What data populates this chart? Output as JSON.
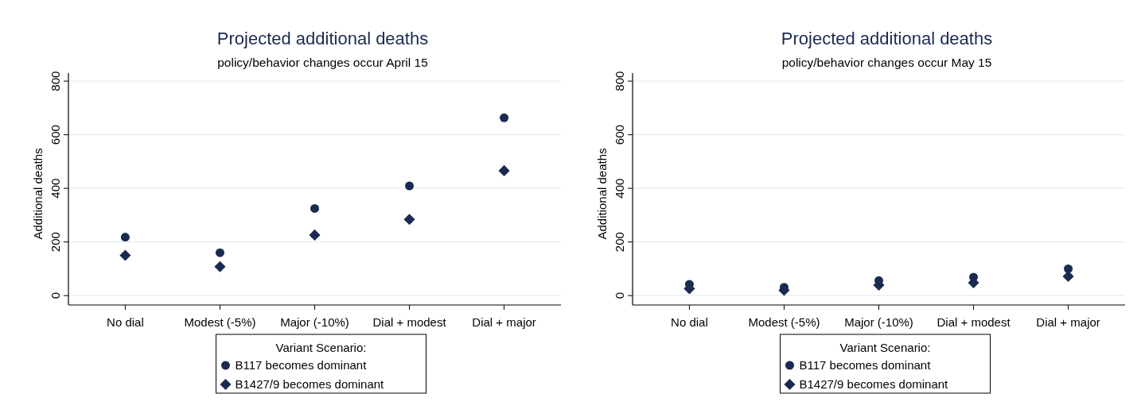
{
  "chart_data": [
    {
      "type": "scatter",
      "title": "Projected additional deaths",
      "subtitle": "policy/behavior changes occur April 15",
      "ylabel": "Additional deaths",
      "categories": [
        "No dial",
        "Modest (-5%)",
        "Major (-10%)",
        "Dial + modest",
        "Dial + major"
      ],
      "ylim": [
        -35,
        830
      ],
      "yticks": [
        0,
        200,
        400,
        600,
        800
      ],
      "grid": "y",
      "legend": "bottom",
      "legend_title": "Variant Scenario:",
      "series": [
        {
          "name": "B117 becomes dominant",
          "color": "#1a2a50",
          "marker": "circle",
          "values": [
            218,
            160,
            325,
            409,
            663
          ]
        },
        {
          "name": "B1427/9 becomes dominant",
          "color": "#1a2a50",
          "marker": "diamond",
          "values": [
            150,
            108,
            226,
            284,
            466
          ]
        }
      ]
    },
    {
      "type": "scatter",
      "title": "Projected additional deaths",
      "subtitle": "policy/behavior changes occur May 15",
      "ylabel": "Additional deaths",
      "categories": [
        "No dial",
        "Modest (-5%)",
        "Major (-10%)",
        "Dial + modest",
        "Dial + major"
      ],
      "ylim": [
        -35,
        830
      ],
      "yticks": [
        0,
        200,
        400,
        600,
        800
      ],
      "grid": "y",
      "legend": "bottom",
      "legend_title": "Variant Scenario:",
      "series": [
        {
          "name": "B117 becomes dominant",
          "color": "#1a2a50",
          "marker": "circle",
          "values": [
            42,
            31,
            56,
            69,
            100
          ]
        },
        {
          "name": "B1427/9 becomes dominant",
          "color": "#1a2a50",
          "marker": "diamond",
          "values": [
            26,
            20,
            39,
            48,
            72
          ]
        }
      ]
    }
  ]
}
